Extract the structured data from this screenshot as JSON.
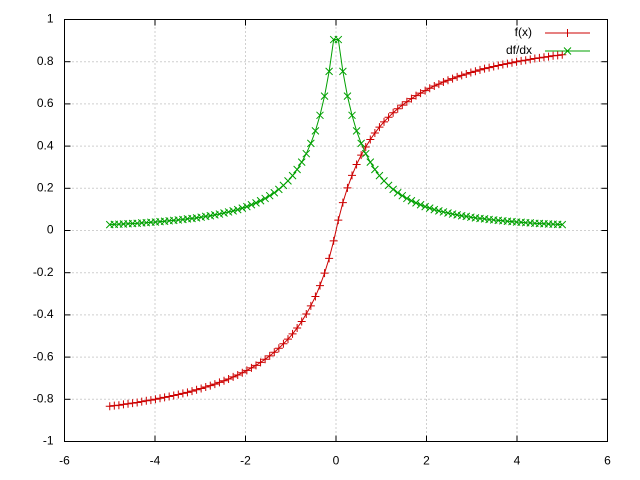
{
  "chart_data": {
    "type": "line",
    "x": [
      -5,
      -4.899,
      -4.798,
      -4.697,
      -4.596,
      -4.495,
      -4.394,
      -4.293,
      -4.192,
      -4.091,
      -3.99,
      -3.889,
      -3.788,
      -3.687,
      -3.586,
      -3.485,
      -3.384,
      -3.283,
      -3.182,
      -3.081,
      -2.98,
      -2.879,
      -2.778,
      -2.677,
      -2.576,
      -2.475,
      -2.374,
      -2.273,
      -2.172,
      -2.071,
      -1.97,
      -1.869,
      -1.768,
      -1.667,
      -1.566,
      -1.465,
      -1.364,
      -1.263,
      -1.162,
      -1.061,
      -0.96,
      -0.859,
      -0.758,
      -0.657,
      -0.556,
      -0.455,
      -0.354,
      -0.253,
      -0.152,
      -0.051,
      0.051,
      0.152,
      0.253,
      0.354,
      0.455,
      0.556,
      0.657,
      0.758,
      0.859,
      0.96,
      1.061,
      1.162,
      1.263,
      1.364,
      1.465,
      1.566,
      1.667,
      1.768,
      1.869,
      1.97,
      2.071,
      2.172,
      2.273,
      2.374,
      2.475,
      2.576,
      2.677,
      2.778,
      2.879,
      2.98,
      3.081,
      3.182,
      3.283,
      3.384,
      3.485,
      3.586,
      3.687,
      3.788,
      3.889,
      3.99,
      4.091,
      4.192,
      4.293,
      4.394,
      4.495,
      4.596,
      4.697,
      4.798,
      4.899,
      5
    ],
    "series": [
      {
        "name": "f(x)",
        "color": "#cc0000",
        "marker": "plus",
        "values": [
          -0.833,
          -0.83,
          -0.828,
          -0.824,
          -0.821,
          -0.818,
          -0.815,
          -0.811,
          -0.807,
          -0.804,
          -0.8,
          -0.795,
          -0.791,
          -0.787,
          -0.782,
          -0.777,
          -0.772,
          -0.767,
          -0.761,
          -0.755,
          -0.749,
          -0.742,
          -0.735,
          -0.728,
          -0.72,
          -0.712,
          -0.704,
          -0.694,
          -0.685,
          -0.674,
          -0.663,
          -0.651,
          -0.639,
          -0.625,
          -0.61,
          -0.594,
          -0.577,
          -0.558,
          -0.537,
          -0.515,
          -0.49,
          -0.462,
          -0.431,
          -0.396,
          -0.357,
          -0.313,
          -0.261,
          -0.202,
          -0.132,
          -0.049,
          0.049,
          0.132,
          0.202,
          0.261,
          0.313,
          0.357,
          0.396,
          0.431,
          0.462,
          0.49,
          0.515,
          0.537,
          0.558,
          0.577,
          0.594,
          0.61,
          0.625,
          0.639,
          0.651,
          0.663,
          0.674,
          0.685,
          0.694,
          0.704,
          0.712,
          0.72,
          0.728,
          0.735,
          0.742,
          0.749,
          0.755,
          0.761,
          0.767,
          0.772,
          0.777,
          0.782,
          0.787,
          0.791,
          0.795,
          0.8,
          0.804,
          0.807,
          0.811,
          0.815,
          0.818,
          0.821,
          0.824,
          0.828,
          0.83,
          0.833
        ]
      },
      {
        "name": "df/dx",
        "color": "#00a000",
        "marker": "cross",
        "values": [
          0.028,
          0.029,
          0.03,
          0.031,
          0.032,
          0.033,
          0.034,
          0.036,
          0.037,
          0.039,
          0.04,
          0.042,
          0.044,
          0.046,
          0.048,
          0.05,
          0.052,
          0.055,
          0.057,
          0.06,
          0.063,
          0.067,
          0.07,
          0.074,
          0.078,
          0.083,
          0.088,
          0.093,
          0.099,
          0.106,
          0.113,
          0.122,
          0.131,
          0.141,
          0.152,
          0.165,
          0.179,
          0.195,
          0.214,
          0.235,
          0.26,
          0.289,
          0.324,
          0.364,
          0.413,
          0.472,
          0.546,
          0.637,
          0.754,
          0.905,
          0.905,
          0.754,
          0.637,
          0.546,
          0.472,
          0.413,
          0.364,
          0.324,
          0.289,
          0.26,
          0.235,
          0.214,
          0.195,
          0.179,
          0.165,
          0.152,
          0.141,
          0.131,
          0.122,
          0.113,
          0.106,
          0.099,
          0.093,
          0.088,
          0.083,
          0.078,
          0.074,
          0.07,
          0.067,
          0.063,
          0.06,
          0.057,
          0.055,
          0.052,
          0.05,
          0.048,
          0.046,
          0.044,
          0.042,
          0.04,
          0.039,
          0.037,
          0.036,
          0.034,
          0.033,
          0.032,
          0.031,
          0.03,
          0.029,
          0.028
        ]
      }
    ],
    "xlim": [
      -6,
      6
    ],
    "xticks": [
      -6,
      -4,
      -2,
      0,
      2,
      4,
      6
    ],
    "ylim": [
      -1,
      1
    ],
    "yticks": [
      -1,
      -0.8,
      -0.6,
      -0.4,
      -0.2,
      0,
      0.2,
      0.4,
      0.6,
      0.8,
      1
    ],
    "grid": true,
    "legend": "top-right"
  }
}
